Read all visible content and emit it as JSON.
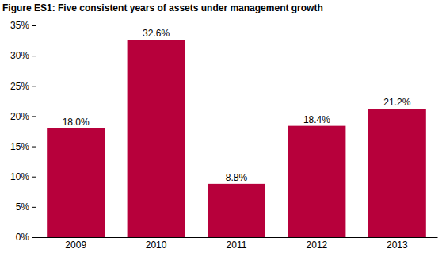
{
  "chart_data": {
    "type": "bar",
    "title": "Figure ES1: Five consistent years of assets under management growth",
    "categories": [
      "2009",
      "2010",
      "2011",
      "2012",
      "2013"
    ],
    "values": [
      18.0,
      32.6,
      8.8,
      18.4,
      21.2
    ],
    "value_labels": [
      "18.0%",
      "32.6%",
      "8.8%",
      "18.4%",
      "21.2%"
    ],
    "data_labels": true,
    "color": "#b7003b",
    "ylim": [
      0,
      35
    ],
    "yticks": [
      {
        "value": 0,
        "label": "0%"
      },
      {
        "value": 5,
        "label": "5%"
      },
      {
        "value": 10,
        "label": "10%"
      },
      {
        "value": 15,
        "label": "15%"
      },
      {
        "value": 20,
        "label": "20%"
      },
      {
        "value": 25,
        "label": "25%"
      },
      {
        "value": 30,
        "label": "30%"
      },
      {
        "value": 35,
        "label": "35%"
      }
    ],
    "grid": false
  }
}
